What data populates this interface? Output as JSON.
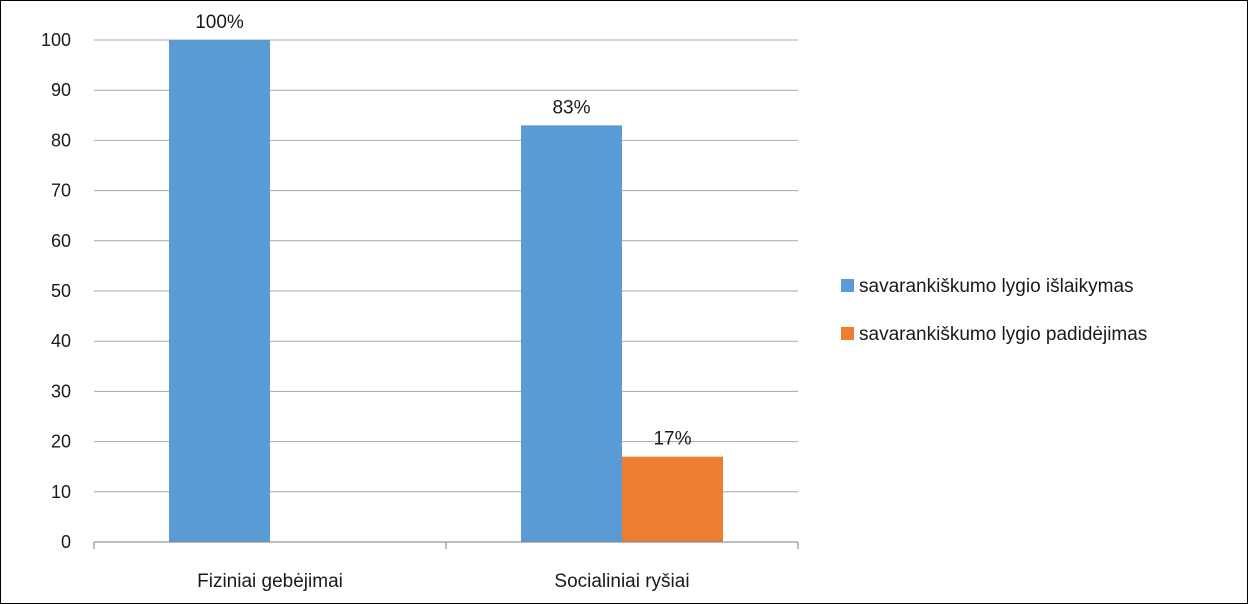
{
  "chart_data": {
    "type": "bar",
    "categories": [
      "Fiziniai gebėjimai",
      "Socialiniai ryšiai"
    ],
    "series": [
      {
        "name": "savarankiškumo lygio išlaikymas",
        "color": "#5B9BD5",
        "values": [
          100,
          83
        ],
        "labels": [
          "100%",
          "83%"
        ]
      },
      {
        "name": "savarankiškumo lygio padidėjimas",
        "color": "#ED7D31",
        "values": [
          null,
          17
        ],
        "labels": [
          "",
          "17%"
        ]
      }
    ],
    "ylim": [
      0,
      100
    ],
    "yticks": [
      0,
      10,
      20,
      30,
      40,
      50,
      60,
      70,
      80,
      90,
      100
    ],
    "grid": true,
    "legend_position": "right"
  }
}
